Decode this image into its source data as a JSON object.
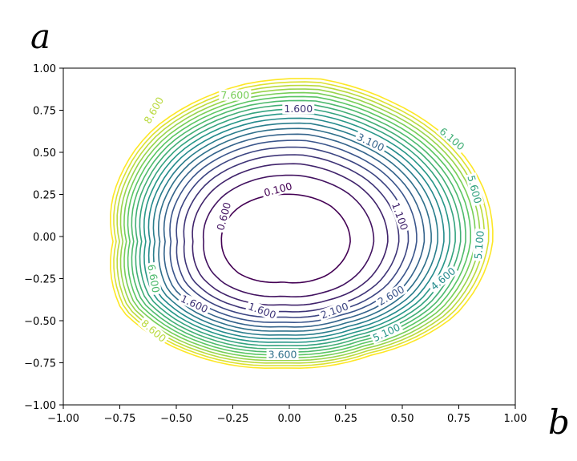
{
  "chart_data": {
    "type": "contour",
    "title": "",
    "ylabel": "a",
    "xlabel": "b",
    "xlim": [
      -1.0,
      1.0
    ],
    "ylim": [
      -1.0,
      1.0
    ],
    "grid": false,
    "colormap": "viridis",
    "x_ticks": [
      "−1.00",
      "−0.75",
      "−0.50",
      "−0.25",
      "0.00",
      "0.25",
      "0.50",
      "0.75",
      "1.00"
    ],
    "y_ticks": [
      "1.00",
      "0.75",
      "0.50",
      "0.25",
      "0.00",
      "−0.25",
      "−0.50",
      "−0.75",
      "−1.00"
    ],
    "levels": [
      0.1,
      0.6,
      1.1,
      1.6,
      2.1,
      2.6,
      3.1,
      3.6,
      4.1,
      4.6,
      5.1,
      5.6,
      6.1,
      6.6,
      7.1,
      7.6,
      8.1,
      8.6,
      9.1,
      9.6
    ],
    "level_range": [
      0.1,
      9.6
    ],
    "center": [
      -0.03,
      -0.03
    ],
    "contour_labels": [
      {
        "text": "0.100",
        "x": -0.05,
        "y": 0.28,
        "rot": -15
      },
      {
        "text": "0.600",
        "x": -0.29,
        "y": 0.12,
        "rot": -75
      },
      {
        "text": "1.100",
        "x": 0.49,
        "y": 0.12,
        "rot": 70
      },
      {
        "text": "1.600",
        "x": -0.12,
        "y": -0.44,
        "rot": 20
      },
      {
        "text": "1.600",
        "x": 0.04,
        "y": 0.76,
        "rot": 0
      },
      {
        "text": "2.100",
        "x": 0.2,
        "y": -0.44,
        "rot": -20
      },
      {
        "text": "2.600",
        "x": 0.45,
        "y": -0.35,
        "rot": -30
      },
      {
        "text": "3.100",
        "x": 0.36,
        "y": 0.56,
        "rot": 25
      },
      {
        "text": "1.600",
        "x": -0.42,
        "y": -0.4,
        "rot": 25
      },
      {
        "text": "4.600",
        "x": 0.68,
        "y": -0.25,
        "rot": -40
      },
      {
        "text": "5.100",
        "x": 0.84,
        "y": -0.05,
        "rot": -85
      },
      {
        "text": "5.600",
        "x": 0.82,
        "y": 0.28,
        "rot": 75
      },
      {
        "text": "6.100",
        "x": 0.72,
        "y": 0.58,
        "rot": 40
      },
      {
        "text": "6.600",
        "x": -0.6,
        "y": -0.25,
        "rot": 80
      },
      {
        "text": "3.600",
        "x": -0.03,
        "y": -0.7,
        "rot": 0
      },
      {
        "text": "7.600",
        "x": -0.24,
        "y": 0.84,
        "rot": 0
      },
      {
        "text": "8.600",
        "x": -0.6,
        "y": 0.75,
        "rot": -60
      },
      {
        "text": "8.600",
        "x": -0.6,
        "y": -0.56,
        "rot": 40
      },
      {
        "text": "5.100",
        "x": 0.43,
        "y": -0.57,
        "rot": -25
      }
    ]
  }
}
